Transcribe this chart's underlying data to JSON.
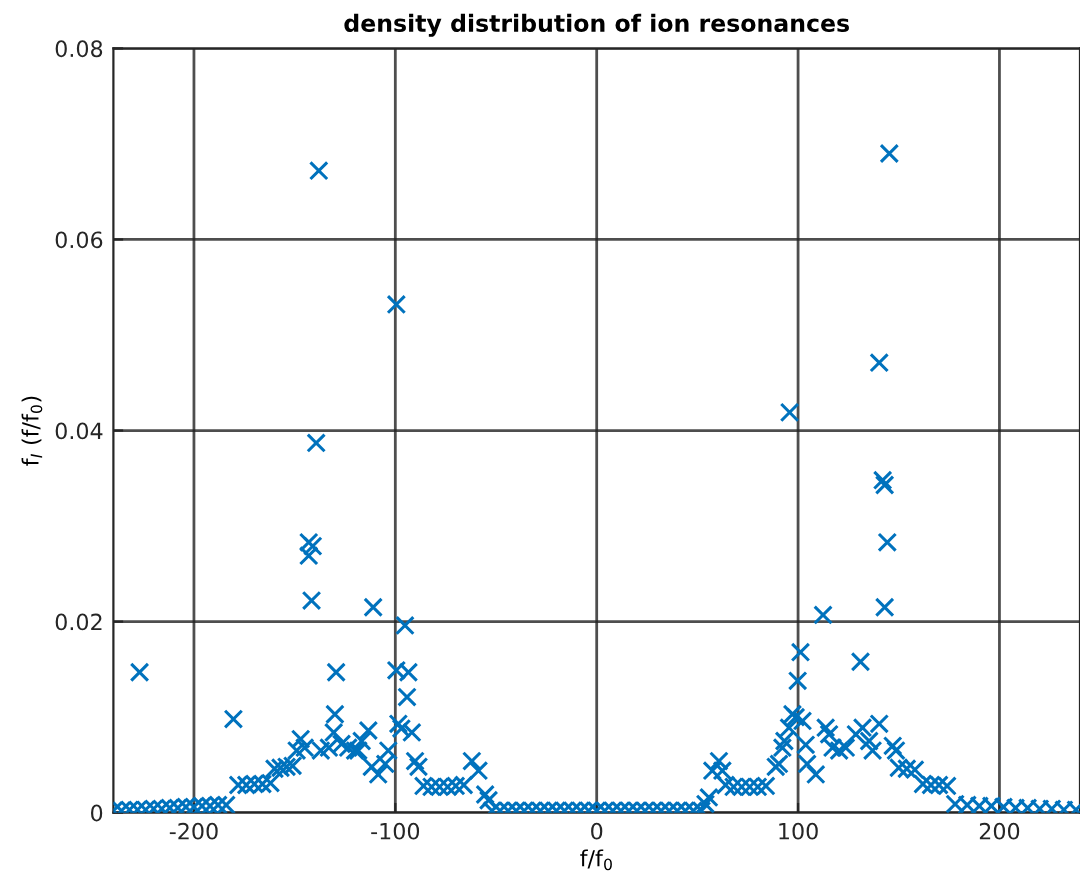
{
  "chart_data": {
    "type": "scatter",
    "title": "density distribution of ion resonances",
    "xlabel": "f/f$_{0}$",
    "ylabel": "f$_{I}$ (f/f$_{0}$)",
    "xlim": [
      -240,
      240
    ],
    "xticks": [
      -200,
      -100,
      0,
      100,
      200
    ],
    "ylim": [
      0,
      0.08
    ],
    "yticks": [
      0,
      0.02,
      0.04,
      0.06,
      0.08
    ],
    "grid": true,
    "marker": "cross",
    "series": [
      {
        "color": "#0072bd",
        "x": [
          -240,
          -236,
          -232,
          -228,
          -227,
          -224,
          -220,
          -216,
          -212,
          -208,
          -204,
          -200,
          -196,
          -192,
          -188,
          -184,
          -180.4,
          -178,
          -174,
          -170,
          -166,
          -162,
          -160,
          -157,
          -154,
          -151,
          -149,
          -147,
          -145,
          -143,
          -143,
          -141.6,
          -141,
          -139.3,
          -138,
          -137,
          -133,
          -130.6,
          -130,
          -129.4,
          -126.7,
          -123.4,
          -120,
          -118.4,
          -116.7,
          -113.4,
          -111.7,
          -111,
          -108.5,
          -105,
          -103.5,
          -99.5,
          -99.5,
          -98.5,
          -97,
          -95.2,
          -94.2,
          -93.5,
          -91.8,
          -90.2,
          -88.5,
          -86,
          -82,
          -78,
          -74,
          -70,
          -66,
          -62,
          -58.7,
          -55.4,
          -53.7,
          -52,
          -48,
          -44,
          -40,
          -36,
          -32,
          -28,
          -24,
          -20,
          -16,
          -12,
          -8,
          -4,
          0,
          4,
          8,
          12,
          16,
          20,
          24,
          28,
          32,
          36,
          40,
          44,
          48,
          52,
          54,
          55.7,
          57.4,
          60.7,
          62.4,
          64,
          68,
          72,
          76,
          80,
          84,
          88.9,
          90.5,
          92.2,
          93.2,
          95.5,
          95.8,
          97.2,
          98.8,
          99.8,
          101.2,
          102.2,
          103.8,
          104.5,
          108.8,
          112.4,
          113.7,
          115.4,
          117.1,
          120.4,
          123.7,
          128.7,
          131,
          132,
          135.3,
          137,
          140.3,
          140.3,
          142,
          143,
          143,
          144.3,
          145.3,
          147,
          148.6,
          150,
          154,
          158,
          162,
          166,
          170,
          174,
          178,
          184,
          190,
          196,
          202,
          208,
          214,
          220,
          226,
          232,
          238
        ],
        "values": [
          0.0002,
          0.0002,
          0.0003,
          0.0003,
          0.0147,
          0.0003,
          0.0004,
          0.0004,
          0.0005,
          0.0005,
          0.0006,
          0.0006,
          0.0007,
          0.0007,
          0.0008,
          0.0008,
          0.0098,
          0.0029,
          0.0029,
          0.003,
          0.003,
          0.0031,
          0.0046,
          0.0047,
          0.0048,
          0.0049,
          0.0065,
          0.0077,
          0.0068,
          0.0283,
          0.0269,
          0.0222,
          0.0279,
          0.0387,
          0.0672,
          0.0065,
          0.0068,
          0.0084,
          0.0103,
          0.0147,
          0.0072,
          0.0068,
          0.0065,
          0.0065,
          0.0075,
          0.0086,
          0.0048,
          0.0215,
          0.004,
          0.0051,
          0.0065,
          0.0532,
          0.0149,
          0.0093,
          0.0088,
          0.0196,
          0.0121,
          0.0147,
          0.0084,
          0.0054,
          0.0048,
          0.0028,
          0.0027,
          0.0027,
          0.0027,
          0.0028,
          0.0029,
          0.0054,
          0.0044,
          0.0019,
          0.0013,
          0.0002,
          0.0002,
          0.0002,
          0.0002,
          0.0002,
          0.0002,
          0.0002,
          0.0002,
          0.0002,
          0.0002,
          0.0002,
          0.0002,
          0.0002,
          0.0002,
          0.0002,
          0.0002,
          0.0002,
          0.0002,
          0.0002,
          0.0002,
          0.0002,
          0.0002,
          0.0002,
          0.0002,
          0.0002,
          0.0002,
          0.0002,
          0.0009,
          0.0016,
          0.0044,
          0.0054,
          0.0044,
          0.0029,
          0.0027,
          0.0027,
          0.0027,
          0.0027,
          0.0028,
          0.0048,
          0.0051,
          0.0068,
          0.0075,
          0.0089,
          0.0419,
          0.0103,
          0.01,
          0.0138,
          0.0168,
          0.0096,
          0.0071,
          0.0051,
          0.004,
          0.0207,
          0.0089,
          0.0082,
          0.0068,
          0.0065,
          0.0068,
          0.0082,
          0.0158,
          0.0089,
          0.0075,
          0.0065,
          0.0093,
          0.0471,
          0.0348,
          0.0343,
          0.0215,
          0.0283,
          0.069,
          0.007,
          0.0065,
          0.0047,
          0.0046,
          0.0045,
          0.003,
          0.0029,
          0.0029,
          0.0028,
          0.0009,
          0.0008,
          0.0007,
          0.0007,
          0.0006,
          0.0005,
          0.0005,
          0.0004,
          0.0004,
          0.0003,
          0.0003
        ]
      }
    ]
  }
}
